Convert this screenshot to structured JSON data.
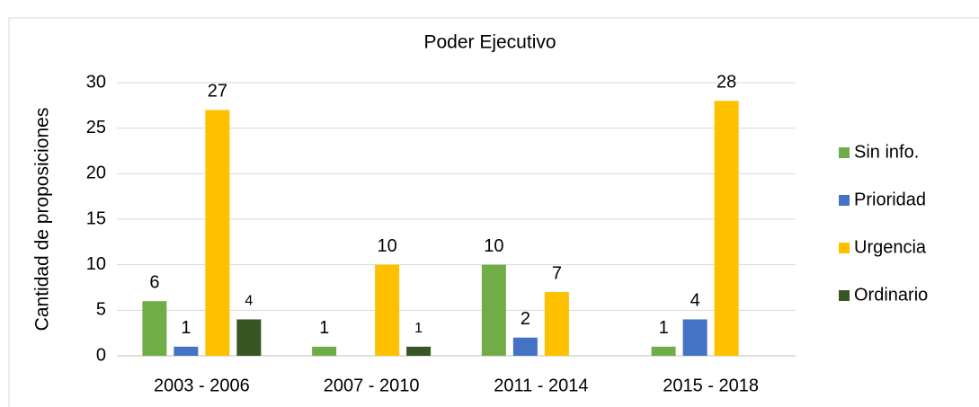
{
  "chart_data": {
    "type": "bar",
    "title": "Poder Ejecutivo",
    "y_label": "Cantidad de proposiciones",
    "categories": [
      "2003 - 2006",
      "2007 - 2010",
      "2011 - 2014",
      "2015 - 2018"
    ],
    "series": [
      {
        "name": "Sin info.",
        "color": "#70ad47",
        "values": [
          6,
          1,
          10,
          1
        ]
      },
      {
        "name": "Prioridad",
        "color": "#4472c4",
        "values": [
          1,
          null,
          2,
          4
        ]
      },
      {
        "name": "Urgencia",
        "color": "#ffc000",
        "values": [
          27,
          10,
          7,
          28
        ]
      },
      {
        "name": "Ordinario",
        "color": "#375623",
        "values": [
          4,
          1,
          null,
          null
        ]
      }
    ],
    "ylim": [
      0,
      30
    ],
    "yticks": [
      0,
      5,
      10,
      15,
      20,
      25,
      30
    ],
    "grid": true,
    "legend": "right"
  }
}
